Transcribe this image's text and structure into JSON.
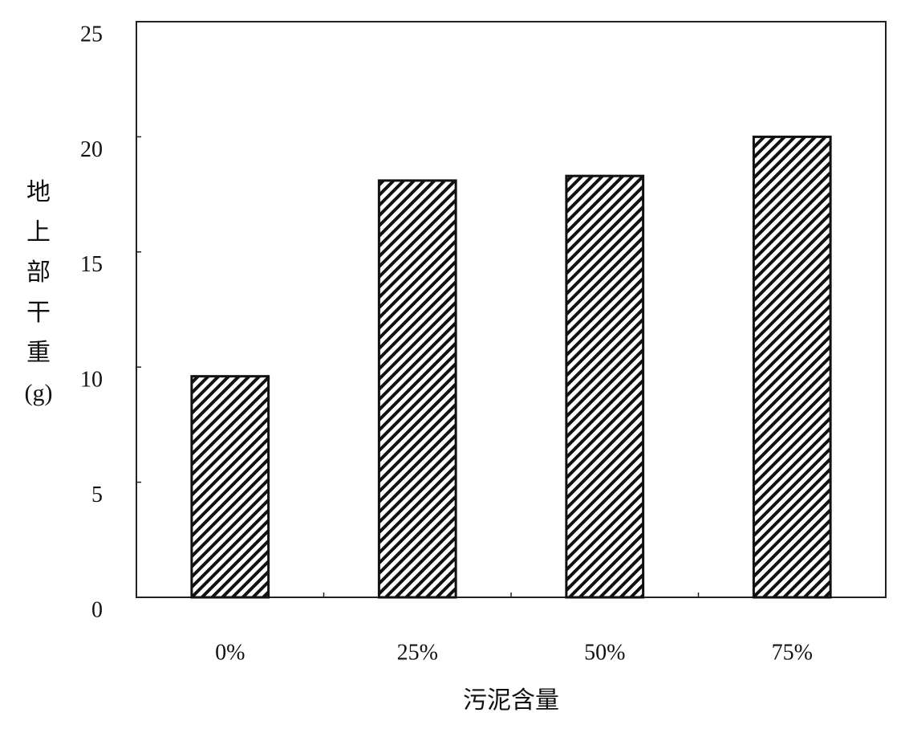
{
  "chart_data": {
    "type": "bar",
    "x_label": "污泥含量",
    "y_label": "地上部干重(g)",
    "categories": [
      "0%",
      "25%",
      "50%",
      "75%"
    ],
    "values": [
      9.6,
      18.1,
      18.3,
      20.0
    ],
    "color": "#111111",
    "ylim": [
      0,
      25
    ],
    "yticks": [
      0,
      5,
      10,
      15,
      20,
      25
    ],
    "grid": false
  }
}
